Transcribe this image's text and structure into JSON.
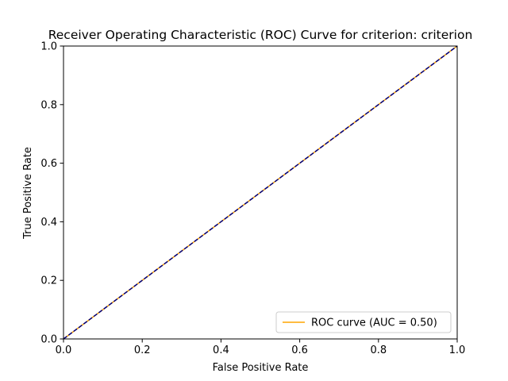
{
  "chart_data": {
    "type": "line",
    "title": "Receiver Operating Characteristic (ROC) Curve for criterion: criterion",
    "xlabel": "False Positive Rate",
    "ylabel": "True Positive Rate",
    "xlim": [
      0.0,
      1.0
    ],
    "ylim": [
      0.0,
      1.0
    ],
    "xticks": [
      "0.0",
      "0.2",
      "0.4",
      "0.6",
      "0.8",
      "1.0"
    ],
    "yticks": [
      "0.0",
      "0.2",
      "0.4",
      "0.6",
      "0.8",
      "1.0"
    ],
    "grid": false,
    "legend_position": "lower-right",
    "series": [
      {
        "name": "ROC curve (AUC = 0.50)",
        "color": "#ffa500",
        "style": "solid",
        "x": [
          0.0,
          1.0
        ],
        "y": [
          0.0,
          1.0
        ]
      },
      {
        "color": "#000080",
        "style": "dashed",
        "x": [
          0.0,
          1.0
        ],
        "y": [
          0.0,
          1.0
        ]
      }
    ]
  }
}
